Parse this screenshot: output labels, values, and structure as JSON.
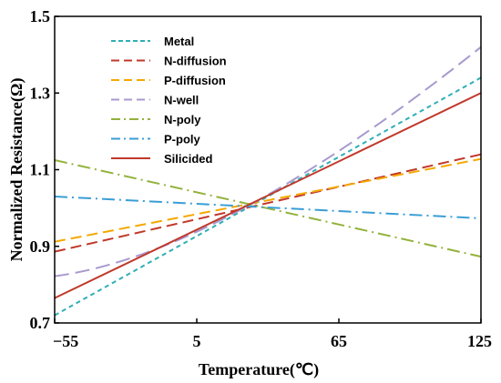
{
  "chart_data": {
    "type": "line",
    "xlabel": "Temperature(℃)",
    "ylabel": "Normalized Resistance(Ω)",
    "xlim": [
      -55,
      125
    ],
    "ylim": [
      0.7,
      1.5
    ],
    "xticks": [
      "−55",
      "5",
      "65",
      "125"
    ],
    "xtick_values": [
      -55,
      5,
      65,
      125
    ],
    "yticks": [
      "0.7",
      "0.9",
      "1.1",
      "1.3",
      "1.5"
    ],
    "ytick_values": [
      0.7,
      0.9,
      1.1,
      1.3,
      1.5
    ],
    "grid": false,
    "legend_position": "top-left",
    "series": [
      {
        "name": "Metal",
        "color": "#2eafb5",
        "dash": "short-dash",
        "x": [
          -55,
          125
        ],
        "y": [
          0.72,
          1.34
        ]
      },
      {
        "name": "N-diffusion",
        "color": "#c0392b",
        "dash": "dash",
        "x": [
          -55,
          125
        ],
        "y": [
          0.886,
          1.14
        ]
      },
      {
        "name": "P-diffusion",
        "color": "#f5a800",
        "dash": "dash",
        "x": [
          -55,
          125
        ],
        "y": [
          0.912,
          1.128
        ]
      },
      {
        "name": "N-well",
        "color": "#a899cf",
        "dash": "long-dash",
        "x": [
          -55,
          25,
          125
        ],
        "y": [
          0.822,
          1.0,
          1.42
        ]
      },
      {
        "name": "N-poly",
        "color": "#93b23c",
        "dash": "dash-dot",
        "x": [
          -55,
          125
        ],
        "y": [
          1.125,
          0.873
        ]
      },
      {
        "name": "P-poly",
        "color": "#3a9ed6",
        "dash": "dash-dot",
        "x": [
          -55,
          125
        ],
        "y": [
          1.03,
          0.973
        ]
      },
      {
        "name": "Silicided",
        "color": "#c0392b",
        "dash": "solid",
        "x": [
          -55,
          125
        ],
        "y": [
          0.765,
          1.3
        ]
      }
    ]
  }
}
